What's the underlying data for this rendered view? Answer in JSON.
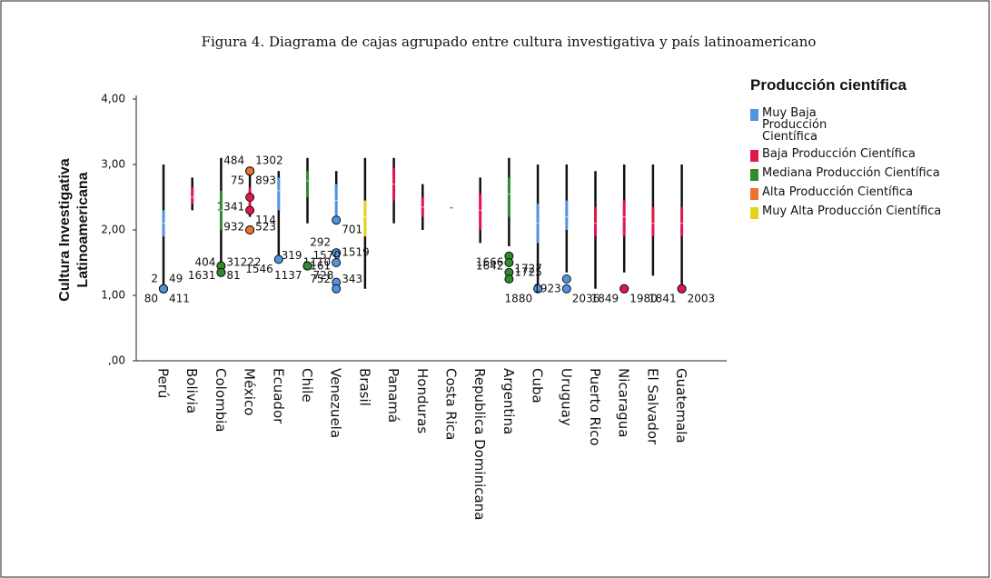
{
  "chart_data": {
    "type": "boxplot",
    "title": "Figura 4. Diagrama de cajas agrupado entre cultura investigativa y país latinoamericano",
    "y_label": [
      "Cultura Investigativa",
      "Latinoamericana"
    ],
    "legend_title": "Producción científica",
    "legend": "right",
    "categories": [
      "Perú",
      "Bolivia",
      "Colombia",
      "México",
      "Ecuador",
      "Chile",
      "Venezuela",
      "Brasil",
      "Panamá",
      "Honduras",
      "Costa Rica",
      "Republica Dominicana",
      "Argentina",
      "Cuba",
      "Uruguay",
      "Puerto Rico",
      "Nicaragua",
      "El Salvador",
      "Guatemala"
    ],
    "ylim": [
      0,
      4.3
    ],
    "yticks": [
      {
        "value": 0,
        "label": ",00"
      },
      {
        "value": 1,
        "label": "1,00"
      },
      {
        "value": 2,
        "label": "2,00"
      },
      {
        "value": 3,
        "label": "3,00"
      },
      {
        "value": 4,
        "label": "4,00"
      }
    ],
    "series": [
      {
        "name": "Muy Baja Producción Científica",
        "color": "#4f94e3",
        "values": [
          {
            "min": 1.15,
            "q1": 1.9,
            "median": 2.1,
            "q3": 2.3,
            "max": 3.0,
            "outliers": [
              {
                "value": 1.1,
                "case": "80"
              },
              {
                "value": 1.1,
                "case": "411"
              },
              {
                "value": 1.1,
                "case": "2"
              },
              {
                "value": 1.1,
                "case": "49"
              }
            ]
          },
          null,
          null,
          null,
          {
            "min": 1.6,
            "q1": 2.3,
            "median": 2.6,
            "q3": 2.8,
            "max": 2.9,
            "outliers": [
              {
                "value": 1.55,
                "case": "1546"
              }
            ]
          },
          null,
          {
            "min": 2.1,
            "q1": 2.2,
            "median": 2.45,
            "q3": 2.7,
            "max": 2.9,
            "outliers": [
              {
                "value": 1.65,
                "case": "1110"
              },
              {
                "value": 2.15,
                "case": "701"
              },
              {
                "value": 1.65,
                "case": "292"
              },
              {
                "value": 1.5,
                "case": "1519"
              },
              {
                "value": 1.2,
                "case": "752",
                "shape": "star"
              },
              {
                "value": 1.2,
                "case": "343"
              },
              {
                "value": 1.1,
                "case": "1161"
              }
            ]
          },
          null,
          null,
          null,
          null,
          null,
          null,
          {
            "min": 1.15,
            "q1": 1.8,
            "median": 2.1,
            "q3": 2.4,
            "max": 3.0,
            "outliers": [
              {
                "value": 1.1,
                "case": "1880"
              }
            ]
          },
          {
            "min": 1.35,
            "q1": 2.0,
            "median": 2.2,
            "q3": 2.45,
            "max": 3.0,
            "outliers": [
              {
                "value": 1.25,
                "case": "1923"
              },
              {
                "value": 1.1,
                "case": "2036"
              }
            ]
          },
          null,
          null,
          null,
          null
        ]
      },
      {
        "name": "Baja Producción Científica",
        "color": "#e3164b",
        "values": [
          null,
          {
            "min": 2.3,
            "q1": 2.4,
            "median": 2.5,
            "q3": 2.65,
            "max": 2.8
          },
          null,
          {
            "min": 2.2,
            "q1": 2.35,
            "median": 2.5,
            "q3": 2.65,
            "max": 2.9,
            "outliers": [
              {
                "value": 2.5,
                "case": "1341"
              },
              {
                "value": 2.3,
                "case": "114"
              }
            ]
          },
          null,
          null,
          null,
          null,
          {
            "min": 2.1,
            "q1": 2.45,
            "median": 2.7,
            "q3": 2.95,
            "max": 3.1
          },
          {
            "min": 2.0,
            "q1": 2.2,
            "median": 2.35,
            "q3": 2.5,
            "max": 2.7
          },
          {
            "min": 2.35,
            "q1": 2.35,
            "median": 2.35,
            "q3": 2.35,
            "max": 2.35
          },
          {
            "min": 1.8,
            "q1": 2.0,
            "median": 2.3,
            "q3": 2.55,
            "max": 2.8
          },
          null,
          null,
          null,
          {
            "min": 1.1,
            "q1": 1.9,
            "median": 2.1,
            "q3": 2.35,
            "max": 2.9
          },
          {
            "min": 1.35,
            "q1": 1.9,
            "median": 2.2,
            "q3": 2.45,
            "max": 3.0,
            "outliers": [
              {
                "value": 1.1,
                "case": "1849"
              },
              {
                "value": 1.1,
                "case": "1980"
              }
            ]
          },
          {
            "min": 1.3,
            "q1": 1.9,
            "median": 2.1,
            "q3": 2.35,
            "max": 3.0
          },
          {
            "min": 1.15,
            "q1": 1.9,
            "median": 2.1,
            "q3": 2.35,
            "max": 3.0,
            "outliers": [
              {
                "value": 1.1,
                "case": "1841"
              },
              {
                "value": 1.1,
                "case": "2003"
              }
            ]
          }
        ]
      },
      {
        "name": "Mediana Producción Científica",
        "color": "#2e8b2e",
        "values": [
          null,
          null,
          {
            "min": 1.4,
            "q1": 2.0,
            "median": 2.3,
            "q3": 2.6,
            "max": 3.1,
            "outliers": [
              {
                "value": 1.45,
                "case": "1631"
              },
              {
                "value": 1.45,
                "case": "81"
              },
              {
                "value": 1.35,
                "case": "404"
              },
              {
                "value": 1.35,
                "case": "31222"
              }
            ]
          },
          null,
          null,
          {
            "min": 2.1,
            "q1": 2.5,
            "median": 2.75,
            "q3": 2.9,
            "max": 3.1,
            "outliers": [
              {
                "value": 1.45,
                "case": "1137"
              },
              {
                "value": 1.45,
                "case": "728"
              },
              {
                "value": 1.45,
                "case": "319"
              },
              {
                "value": 1.45,
                "case": "1570"
              }
            ]
          },
          null,
          null,
          null,
          null,
          null,
          null,
          {
            "min": 1.75,
            "q1": 2.2,
            "median": 2.55,
            "q3": 2.8,
            "max": 3.1,
            "outliers": [
              {
                "value": 1.6,
                "case": "1642"
              },
              {
                "value": 1.5,
                "case": "1725"
              },
              {
                "value": 1.35,
                "case": "1666"
              },
              {
                "value": 1.25,
                "case": "1727"
              }
            ]
          },
          null,
          null,
          null,
          null,
          null,
          null
        ]
      },
      {
        "name": "Alta Producción Científica",
        "color": "#f07030",
        "values": [
          null,
          null,
          null,
          {
            "outliers": [
              {
                "value": 2.9,
                "case": "75"
              },
              {
                "value": 2.9,
                "case": "893"
              },
              {
                "value": 2.9,
                "case": "484"
              },
              {
                "value": 2.9,
                "case": "1302"
              },
              {
                "value": 2.0,
                "case": "932"
              },
              {
                "value": 2.0,
                "case": "523"
              }
            ]
          },
          null,
          null,
          null,
          null,
          null,
          null,
          null,
          null,
          null,
          null,
          null,
          null,
          null,
          null,
          null
        ]
      },
      {
        "name": "Muy Alta Producción Científica",
        "color": "#e2d21a",
        "values": [
          null,
          null,
          null,
          null,
          null,
          null,
          null,
          {
            "min": 1.1,
            "q1": 1.9,
            "median": 2.2,
            "q3": 2.45,
            "max": 3.1
          },
          null,
          null,
          null,
          null,
          null,
          null,
          null,
          null,
          null,
          null,
          null
        ]
      }
    ]
  }
}
